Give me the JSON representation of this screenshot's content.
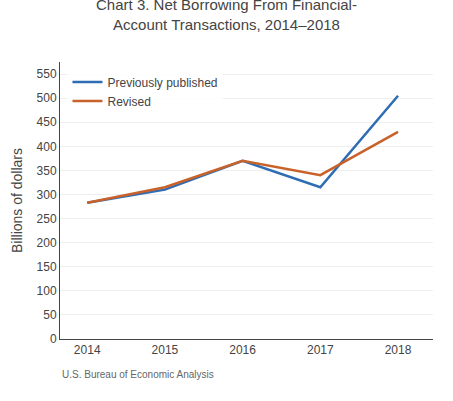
{
  "chart_data": {
    "type": "line",
    "title": "Chart 3. Net Borrowing From Financial-\nAccount Transactions, 2014–2018",
    "y_label": "Billions of dollars",
    "annotations": [
      "U.S. Bureau of Economic Analysis"
    ],
    "x": [
      2014,
      2015,
      2016,
      2017,
      2018
    ],
    "series": [
      {
        "name": "Previously published",
        "color": "#2e6db4",
        "values": [
          283,
          310,
          370,
          315,
          505
        ]
      },
      {
        "name": "Revised",
        "color": "#c8622a",
        "values": [
          283,
          315,
          370,
          340,
          430
        ]
      }
    ],
    "xlim": [
      2013.65,
      2018.45
    ],
    "xticks": [
      2014,
      2015,
      2016,
      2017,
      2018
    ],
    "ylim": [
      0,
      575
    ],
    "yticks": [
      0,
      50,
      100,
      150,
      200,
      250,
      300,
      350,
      400,
      450,
      500,
      550
    ],
    "grid": "y",
    "legend": "upper left"
  }
}
